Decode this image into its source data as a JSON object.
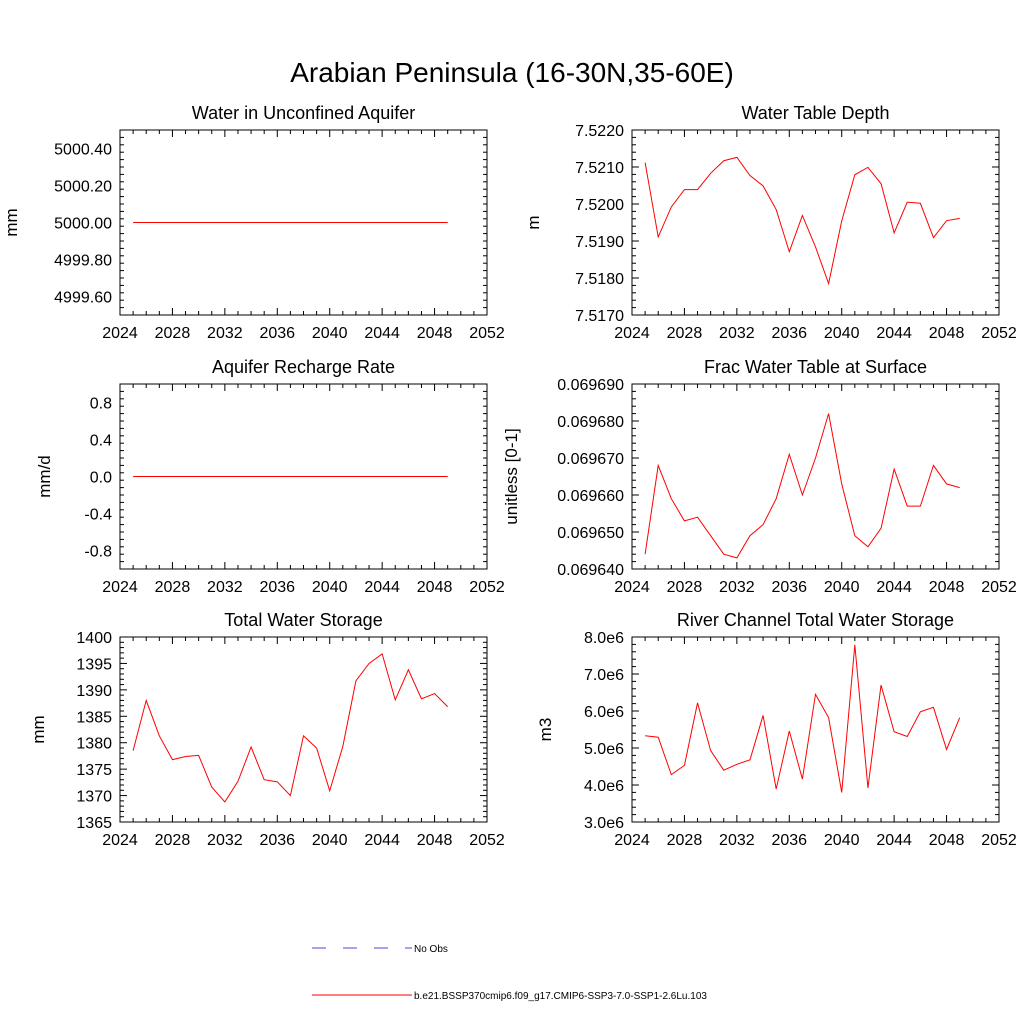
{
  "figure": {
    "title": "Arabian Peninsula (16-30N,35-60E)"
  },
  "legend": {
    "items": [
      {
        "label": "No Obs",
        "color": "#4a4ad8",
        "style": "dashed"
      },
      {
        "label": "b.e21.BSSP370cmip6.f09_g17.CMIP6-SSP3-7.0-SSP1-2.6Lu.103",
        "color": "#ff0000",
        "style": "solid"
      }
    ]
  },
  "chart_data": [
    {
      "type": "line",
      "title": "Water in Unconfined Aquifer",
      "ylabel": "mm",
      "xlim": [
        2024,
        2052
      ],
      "ylim": [
        4999.5,
        5000.5
      ],
      "xticks": [
        2024,
        2028,
        2032,
        2036,
        2040,
        2044,
        2048,
        2052
      ],
      "yticks": [
        4999.6,
        4999.8,
        5000.0,
        5000.2,
        5000.4
      ],
      "ytick_labels": [
        "4999.60",
        "4999.80",
        "5000.00",
        "5000.20",
        "5000.40"
      ],
      "x": [
        2025,
        2026,
        2027,
        2028,
        2029,
        2030,
        2031,
        2032,
        2033,
        2034,
        2035,
        2036,
        2037,
        2038,
        2039,
        2040,
        2041,
        2042,
        2043,
        2044,
        2045,
        2046,
        2047,
        2048,
        2049
      ],
      "series": [
        {
          "color": "#ff0000",
          "values": [
            5000,
            5000,
            5000,
            5000,
            5000,
            5000,
            5000,
            5000,
            5000,
            5000,
            5000,
            5000,
            5000,
            5000,
            5000,
            5000,
            5000,
            5000,
            5000,
            5000,
            5000,
            5000,
            5000,
            5000,
            5000
          ]
        }
      ]
    },
    {
      "type": "line",
      "title": "Water Table Depth",
      "ylabel": "m",
      "xlim": [
        2024,
        2052
      ],
      "ylim": [
        7.517,
        7.522
      ],
      "xticks": [
        2024,
        2028,
        2032,
        2036,
        2040,
        2044,
        2048,
        2052
      ],
      "yticks": [
        7.517,
        7.518,
        7.519,
        7.52,
        7.521,
        7.522
      ],
      "ytick_labels": [
        "7.5170",
        "7.5180",
        "7.5190",
        "7.5200",
        "7.5210",
        "7.5220"
      ],
      "x": [
        2025,
        2026,
        2027,
        2028,
        2029,
        2030,
        2031,
        2032,
        2033,
        2034,
        2035,
        2036,
        2037,
        2038,
        2039,
        2040,
        2041,
        2042,
        2043,
        2044,
        2045,
        2046,
        2047,
        2048,
        2049
      ],
      "series": [
        {
          "color": "#ff0000",
          "values": [
            7.52112,
            7.51911,
            7.51992,
            7.52039,
            7.52039,
            7.52083,
            7.52117,
            7.52126,
            7.52077,
            7.52049,
            7.51985,
            7.51871,
            7.51969,
            7.51884,
            7.51785,
            7.51954,
            7.52079,
            7.52099,
            7.52055,
            7.51922,
            7.52005,
            7.52002,
            7.51909,
            7.51955,
            7.51961
          ]
        }
      ]
    },
    {
      "type": "line",
      "title": "Aquifer Recharge Rate",
      "ylabel": "mm/d",
      "xlim": [
        2024,
        2052
      ],
      "ylim": [
        -1.0,
        1.0
      ],
      "xticks": [
        2024,
        2028,
        2032,
        2036,
        2040,
        2044,
        2048,
        2052
      ],
      "yticks": [
        -0.8,
        -0.4,
        0.0,
        0.4,
        0.8
      ],
      "ytick_labels": [
        "-0.8",
        "-0.4",
        "0.0",
        "0.4",
        "0.8"
      ],
      "x": [
        2025,
        2026,
        2027,
        2028,
        2029,
        2030,
        2031,
        2032,
        2033,
        2034,
        2035,
        2036,
        2037,
        2038,
        2039,
        2040,
        2041,
        2042,
        2043,
        2044,
        2045,
        2046,
        2047,
        2048,
        2049
      ],
      "series": [
        {
          "color": "#ff0000",
          "values": [
            0,
            0,
            0,
            0,
            0,
            0,
            0,
            0,
            0,
            0,
            0,
            0,
            0,
            0,
            0,
            0,
            0,
            0,
            0,
            0,
            0,
            0,
            0,
            0,
            0
          ]
        }
      ]
    },
    {
      "type": "line",
      "title": "Frac Water Table at Surface",
      "ylabel": "unitless [0-1]",
      "xlim": [
        2024,
        2052
      ],
      "ylim": [
        0.06964,
        0.06969
      ],
      "xticks": [
        2024,
        2028,
        2032,
        2036,
        2040,
        2044,
        2048,
        2052
      ],
      "yticks": [
        0.06964,
        0.06965,
        0.06966,
        0.06967,
        0.06968,
        0.06969
      ],
      "ytick_labels": [
        "0.069640",
        "0.069650",
        "0.069660",
        "0.069670",
        "0.069680",
        "0.069690"
      ],
      "x": [
        2025,
        2026,
        2027,
        2028,
        2029,
        2030,
        2031,
        2032,
        2033,
        2034,
        2035,
        2036,
        2037,
        2038,
        2039,
        2040,
        2041,
        2042,
        2043,
        2044,
        2045,
        2046,
        2047,
        2048,
        2049
      ],
      "series": [
        {
          "color": "#ff0000",
          "values": [
            0.069644,
            0.069668,
            0.069659,
            0.069653,
            0.069654,
            0.069649,
            0.069644,
            0.069643,
            0.069649,
            0.069652,
            0.069659,
            0.069671,
            0.06966,
            0.06967,
            0.069682,
            0.069663,
            0.069649,
            0.069646,
            0.069651,
            0.069667,
            0.069657,
            0.069657,
            0.069668,
            0.069663,
            0.069662
          ]
        }
      ]
    },
    {
      "type": "line",
      "title": "Total Water Storage",
      "ylabel": "mm",
      "xlim": [
        2024,
        2052
      ],
      "ylim": [
        1365,
        1400
      ],
      "xticks": [
        2024,
        2028,
        2032,
        2036,
        2040,
        2044,
        2048,
        2052
      ],
      "yticks": [
        1365,
        1370,
        1375,
        1380,
        1385,
        1390,
        1395,
        1400
      ],
      "ytick_labels": [
        "1365",
        "1370",
        "1375",
        "1380",
        "1385",
        "1390",
        "1395",
        "1400"
      ],
      "x": [
        2025,
        2026,
        2027,
        2028,
        2029,
        2030,
        2031,
        2032,
        2033,
        2034,
        2035,
        2036,
        2037,
        2038,
        2039,
        2040,
        2041,
        2042,
        2043,
        2044,
        2045,
        2046,
        2047,
        2048,
        2049
      ],
      "series": [
        {
          "color": "#ff0000",
          "values": [
            1378.5,
            1388.0,
            1381.3,
            1376.8,
            1377.4,
            1377.6,
            1371.6,
            1368.8,
            1372.7,
            1379.2,
            1373.0,
            1372.6,
            1370.0,
            1381.3,
            1379.0,
            1370.9,
            1379.3,
            1391.7,
            1395.0,
            1396.8,
            1388.1,
            1393.8,
            1388.3,
            1389.3,
            1386.8
          ]
        }
      ]
    },
    {
      "type": "line",
      "title": "River Channel Total Water Storage",
      "ylabel": "m3",
      "xlim": [
        2024,
        2052
      ],
      "ylim": [
        3000000,
        8000000
      ],
      "xticks": [
        2024,
        2028,
        2032,
        2036,
        2040,
        2044,
        2048,
        2052
      ],
      "yticks": [
        3000000,
        4000000,
        5000000,
        6000000,
        7000000,
        8000000
      ],
      "ytick_labels": [
        "3.0e6",
        "4.0e6",
        "5.0e6",
        "6.0e6",
        "7.0e6",
        "8.0e6"
      ],
      "x": [
        2025,
        2026,
        2027,
        2028,
        2029,
        2030,
        2031,
        2032,
        2033,
        2034,
        2035,
        2036,
        2037,
        2038,
        2039,
        2040,
        2041,
        2042,
        2043,
        2044,
        2045,
        2046,
        2047,
        2048,
        2049
      ],
      "series": [
        {
          "color": "#ff0000",
          "values": [
            5330000,
            5290000,
            4280000,
            4530000,
            6220000,
            4930000,
            4400000,
            4560000,
            4680000,
            5880000,
            3890000,
            5460000,
            4160000,
            6450000,
            5820000,
            3800000,
            7790000,
            3920000,
            6700000,
            5440000,
            5310000,
            5980000,
            6100000,
            4960000,
            5820000
          ]
        }
      ]
    }
  ]
}
